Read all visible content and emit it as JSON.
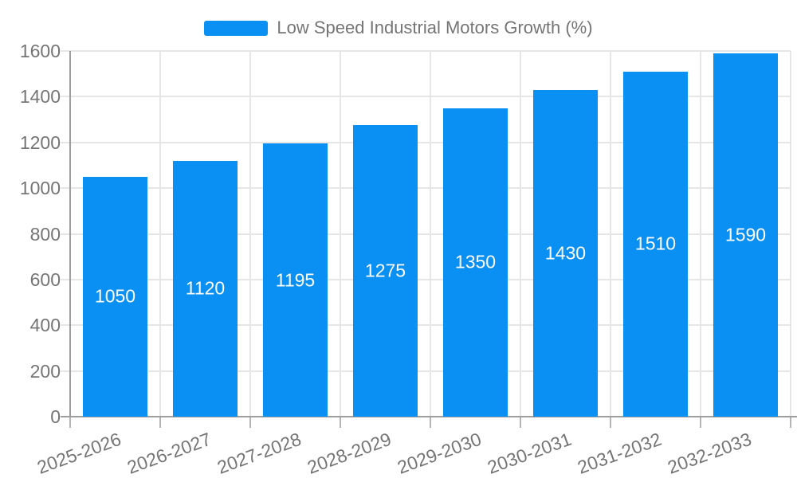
{
  "legend": {
    "label": "Low Speed Industrial Motors Growth (%)"
  },
  "colors": {
    "bar": "#0a90f2",
    "bar_label_text": "#ffffff",
    "axis_line": "#9e9e9e",
    "grid_line": "#e6e6e6",
    "tick_mark": "#b5b5b5",
    "label_text": "#757575",
    "background": "#ffffff"
  },
  "chart_data": {
    "type": "bar",
    "title": "",
    "categories": [
      "2025-2026",
      "2026-2027",
      "2027-2028",
      "2028-2029",
      "2029-2030",
      "2030-2031",
      "2031-2032",
      "2032-2033"
    ],
    "series": [
      {
        "name": "Low Speed Industrial Motors Growth (%)",
        "values": [
          1050,
          1120,
          1195,
          1275,
          1350,
          1430,
          1510,
          1590
        ]
      }
    ],
    "xlabel": "",
    "ylabel": "",
    "ylim": [
      0,
      1600
    ],
    "yticks": [
      0,
      200,
      400,
      600,
      800,
      1000,
      1200,
      1400,
      1600
    ],
    "grid": true,
    "legend_position": "top-center",
    "bar_value_labels": "inside-middle",
    "x_tick_rotation_deg": -20
  }
}
